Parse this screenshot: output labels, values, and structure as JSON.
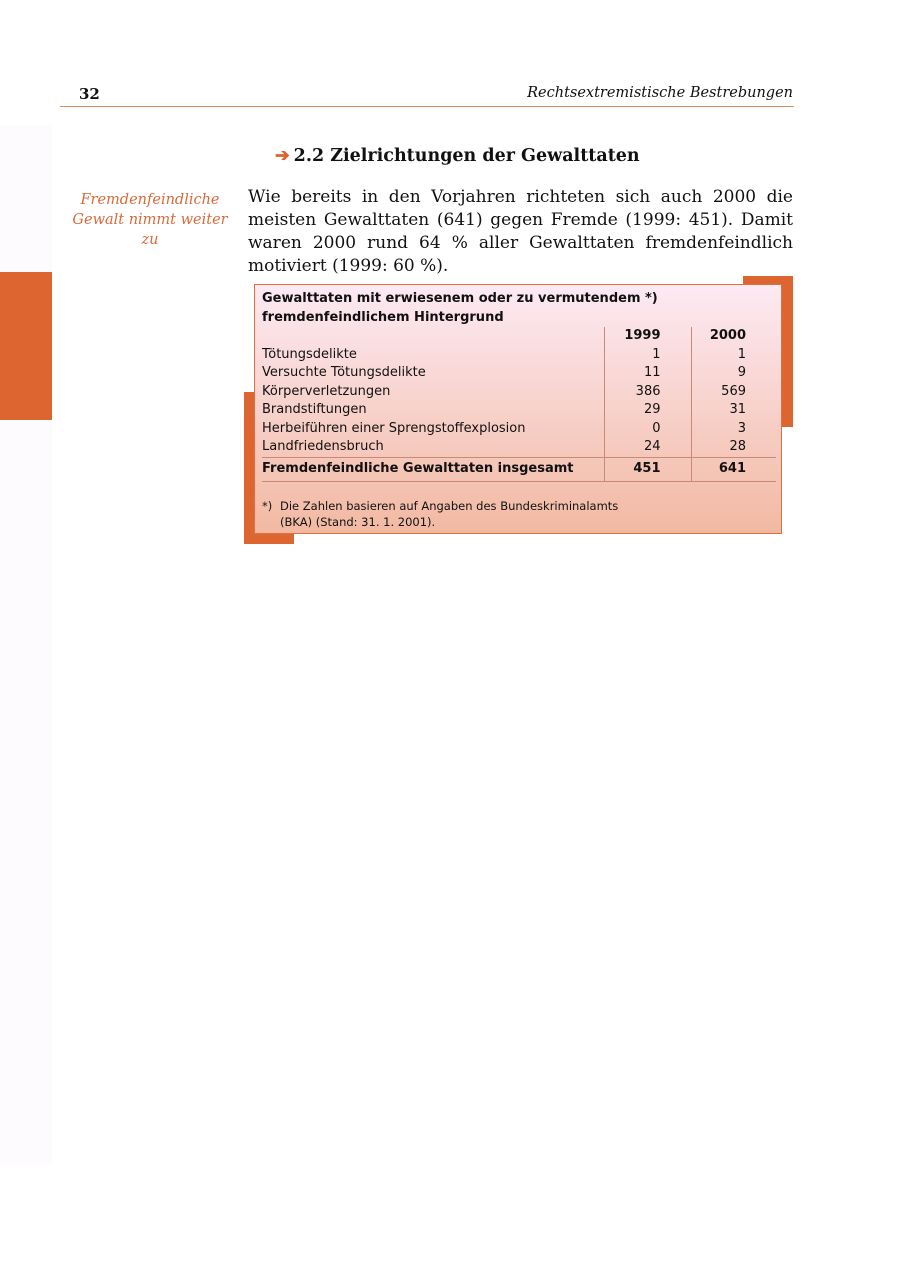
{
  "header": {
    "page_number": "32",
    "running_title": "Rechtsextremistische Bestrebungen"
  },
  "section": {
    "arrow_icon": "right-arrow",
    "title": "2.2 Zielrichtungen der Gewalttaten"
  },
  "margin_note": "Fremdenfeindliche Gewalt nimmt weiter zu",
  "body_text": "Wie bereits in den Vorjahren richteten sich auch 2000 die meisten Gewalttaten (641) gegen Fremde (1999: 451). Damit waren 2000 rund 64 % aller Gewalttaten fremdenfeindlich motiviert (1999: 60 %).",
  "colors": {
    "accent": "#dc6530"
  },
  "table": {
    "title": "Gewalttaten mit erwiesenem oder zu vermutendem *) fremdenfeindlichem Hintergrund",
    "columns": [
      "",
      "1999",
      "2000"
    ],
    "rows": [
      {
        "label": "Tötungsdelikte",
        "y1999": "1",
        "y2000": "1"
      },
      {
        "label": "Versuchte Tötungsdelikte",
        "y1999": "11",
        "y2000": "9"
      },
      {
        "label": "Körperverletzungen",
        "y1999": "386",
        "y2000": "569"
      },
      {
        "label": "Brandstiftungen",
        "y1999": "29",
        "y2000": "31"
      },
      {
        "label": "Herbeiführen einer Sprengstoffexplosion",
        "y1999": "0",
        "y2000": "3"
      },
      {
        "label": "Landfriedensbruch",
        "y1999": "24",
        "y2000": "28"
      }
    ],
    "total": {
      "label": "Fremdenfeindliche Gewalttaten insgesamt",
      "y1999": "451",
      "y2000": "641"
    },
    "footnote_mark": "*)",
    "footnote": "Die Zahlen basieren auf Angaben des Bundeskriminalamts (BKA) (Stand: 31. 1. 2001)."
  }
}
